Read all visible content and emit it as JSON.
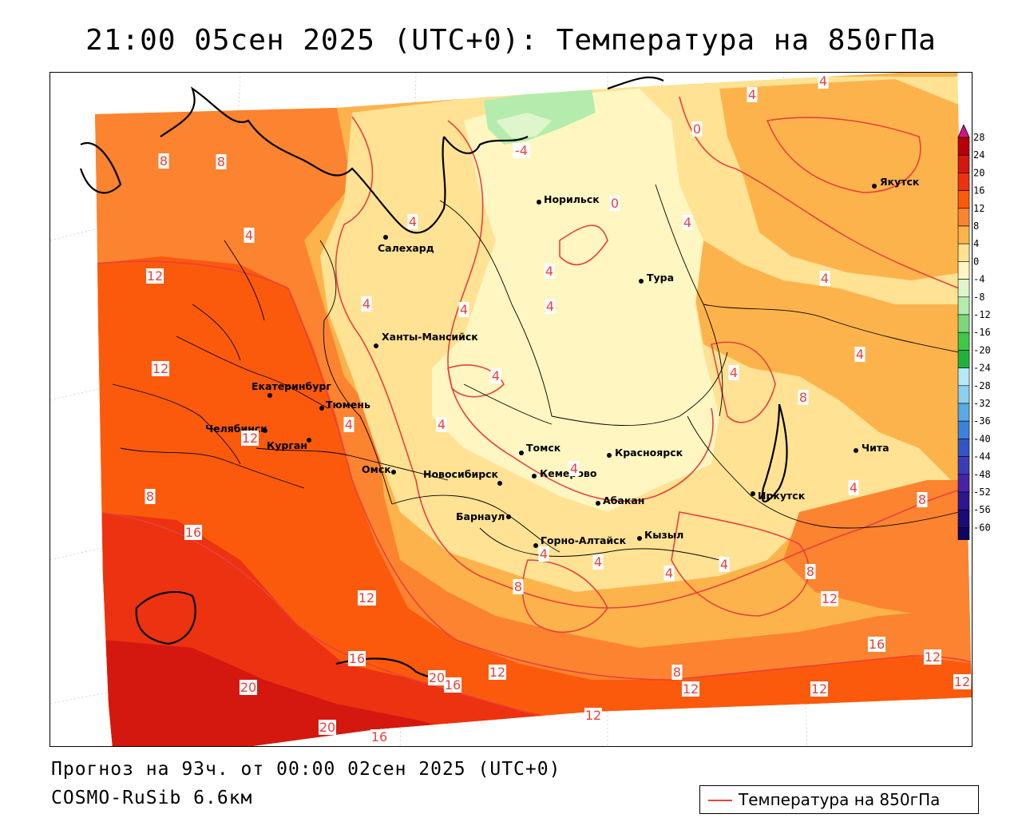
{
  "title": "21:00 05сен 2025 (UTC+0): Температура на 850гПа",
  "forecast_line": "Прогноз на 93ч. от 00:00 02сен 2025 (UTC+0)",
  "model_line": "COSMO-RuSib 6.6км",
  "legend": {
    "label": "Температура на 850гПа",
    "line_color": "#e8413b"
  },
  "colorbar": {
    "ticks": [
      "28",
      "24",
      "20",
      "16",
      "12",
      "8",
      "4",
      "0",
      "-4",
      "-8",
      "-12",
      "-16",
      "-20",
      "-24",
      "-28",
      "-32",
      "-36",
      "-40",
      "-44",
      "-48",
      "-52",
      "-56",
      "-60"
    ],
    "colors": [
      "#b8000a",
      "#d41810",
      "#ec3210",
      "#fb5a0c",
      "#fc8330",
      "#fdb34c",
      "#ffe294",
      "#fff6c2",
      "#dff5cc",
      "#b4ecae",
      "#7ed87b",
      "#3ec84a",
      "#1eb43c",
      "#b7e8f6",
      "#8ccfee",
      "#5aa8e6",
      "#3a82dc",
      "#3256c8",
      "#3a3eb6",
      "#4824a4",
      "#2e1690",
      "#1c0a78",
      "#0c0460"
    ],
    "top_arrow_color": "#d4148c",
    "bottom_arrow_color": "#a020a0"
  },
  "cities": [
    {
      "name": "Норильск"
    },
    {
      "name": "Якутск"
    },
    {
      "name": "Салехард"
    },
    {
      "name": "Тура"
    },
    {
      "name": "Ханты-Мансийск"
    },
    {
      "name": "Екатеринбург"
    },
    {
      "name": "Тюмень"
    },
    {
      "name": "Челябинск"
    },
    {
      "name": "Курган"
    },
    {
      "name": "Омск"
    },
    {
      "name": "Новосибирск"
    },
    {
      "name": "Томск"
    },
    {
      "name": "Кемерово"
    },
    {
      "name": "Красноярск"
    },
    {
      "name": "Барнаул"
    },
    {
      "name": "Абакан"
    },
    {
      "name": "Кызыл"
    },
    {
      "name": "Горно-Алтайск"
    },
    {
      "name": "Иркутск"
    },
    {
      "name": "Чита"
    }
  ],
  "isotherm_labels": [
    "4",
    "4",
    "0",
    "-4",
    "0",
    "8",
    "8",
    "4",
    "4",
    "4",
    "12",
    "4",
    "4",
    "4",
    "4",
    "4",
    "4",
    "12",
    "4",
    "4",
    "8",
    "12",
    "4",
    "4",
    "4",
    "4",
    "8",
    "8",
    "4",
    "16",
    "4",
    "12",
    "8",
    "8",
    "12",
    "4",
    "4",
    "12",
    "16",
    "20",
    "16",
    "12",
    "20",
    "8",
    "12",
    "16",
    "12",
    "12",
    "20",
    "16",
    "12",
    "12"
  ]
}
